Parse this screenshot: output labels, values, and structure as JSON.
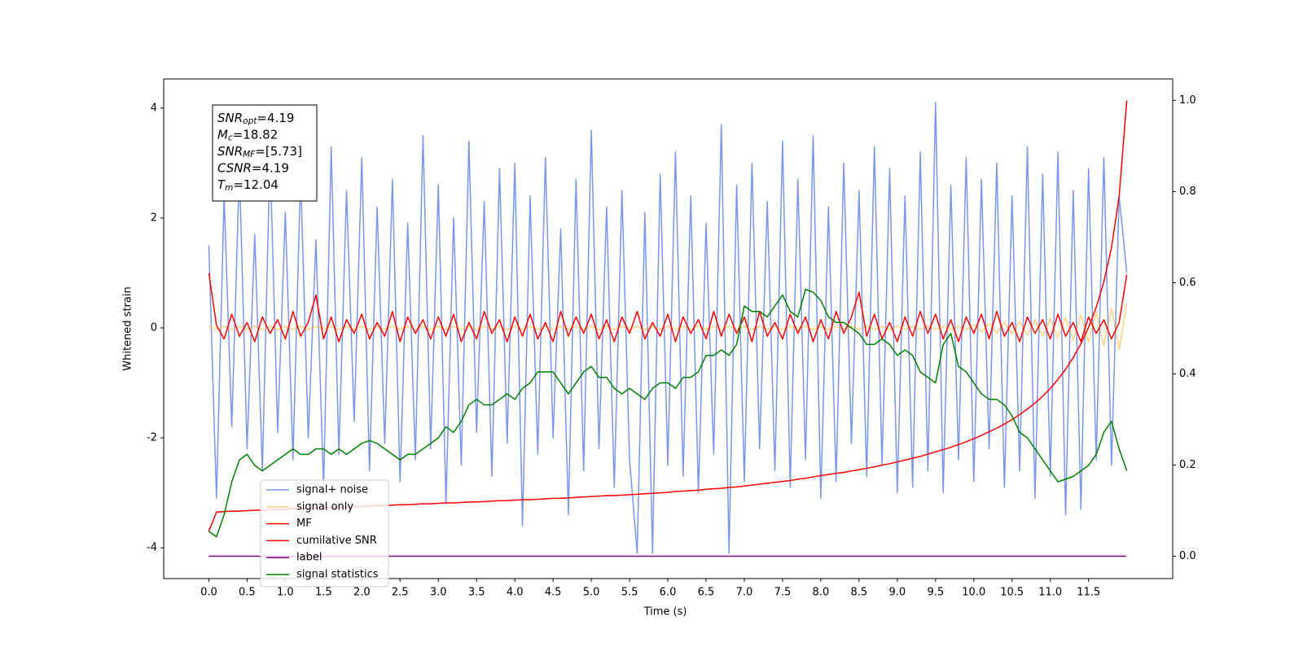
{
  "chart_data": {
    "type": "line",
    "xlabel": "Time (s)",
    "ylabel": "Whitened strain",
    "xlim": [
      -0.59,
      12.6
    ],
    "ylim": [
      -4.56,
      4.53
    ],
    "y2lim": [
      -0.049,
      1.047
    ],
    "xticks": [
      {
        "value": 0,
        "label": "0.0"
      },
      0.5,
      {
        "value": 1,
        "label": "1.0"
      },
      1.5,
      {
        "value": 2,
        "label": "2.0"
      },
      2.5,
      {
        "value": 3,
        "label": "3.0"
      },
      3.5,
      {
        "value": 4,
        "label": "4.0"
      },
      4.5,
      {
        "value": 5,
        "label": "5.0"
      },
      5.5,
      {
        "value": 6,
        "label": "6.0"
      },
      6.5,
      {
        "value": 7,
        "label": "7.0"
      },
      7.5,
      {
        "value": 8,
        "label": "8.0"
      },
      8.5,
      {
        "value": 9,
        "label": "9.0"
      },
      9.5,
      {
        "value": 10,
        "label": "10.0"
      },
      10.5,
      {
        "value": 11,
        "label": "11.0"
      },
      11.5
    ],
    "yticks": [
      -4,
      -2,
      0,
      2,
      4
    ],
    "y2ticks": [
      {
        "value": 0,
        "label": "0.0"
      },
      0.2,
      0.4,
      0.6,
      0.8,
      {
        "value": 1,
        "label": "1.0"
      }
    ],
    "legend": "lower left",
    "annotations": [
      {
        "base": "SNR",
        "sub": "opt",
        "text": "=4.19"
      },
      {
        "base": "M",
        "sub": "c",
        "text": "=18.82"
      },
      {
        "base": "SNR",
        "sub": "MF",
        "text": "=[5.73]"
      },
      {
        "base": "CSNR",
        "text": "=4.19"
      },
      {
        "base": "T",
        "sub": "m",
        "text": "=12.04"
      }
    ],
    "x": [
      0,
      0.1,
      0.2,
      0.3,
      0.4,
      0.5,
      0.6,
      0.7,
      0.8,
      0.9,
      1,
      1.1,
      1.2,
      1.3,
      1.4,
      1.5,
      1.6,
      1.7,
      1.8,
      1.9,
      2,
      2.1,
      2.2,
      2.3,
      2.4,
      2.5,
      2.6,
      2.7,
      2.8,
      2.9,
      3,
      3.1,
      3.2,
      3.3,
      3.4,
      3.5,
      3.6,
      3.7,
      3.8,
      3.9,
      4,
      4.1,
      4.2,
      4.3,
      4.4,
      4.5,
      4.6,
      4.7,
      4.8,
      4.9,
      5,
      5.1,
      5.2,
      5.3,
      5.4,
      5.5,
      5.6,
      5.7,
      5.8,
      5.9,
      6,
      6.1,
      6.2,
      6.3,
      6.4,
      6.5,
      6.6,
      6.7,
      6.8,
      6.9,
      7,
      7.1,
      7.2,
      7.3,
      7.4,
      7.5,
      7.6,
      7.7,
      7.8,
      7.9,
      8,
      8.1,
      8.2,
      8.3,
      8.4,
      8.5,
      8.6,
      8.7,
      8.8,
      8.9,
      9,
      9.1,
      9.2,
      9.3,
      9.4,
      9.5,
      9.6,
      9.7,
      9.8,
      9.9,
      10,
      10.1,
      10.2,
      10.3,
      10.4,
      10.5,
      10.6,
      10.7,
      10.8,
      10.9,
      11,
      11.1,
      11.2,
      11.3,
      11.4,
      11.5,
      11.6,
      11.7,
      11.8,
      11.9,
      12
    ],
    "series": [
      {
        "name": "signal+ noise",
        "color": "#4169e1",
        "alpha": 0.7,
        "values": [
          1.5,
          -3.1,
          2.4,
          -1.8,
          2.9,
          -2.2,
          1.7,
          -2.6,
          3.2,
          -1.9,
          2.1,
          -2.4,
          2.8,
          -2.0,
          1.6,
          -2.9,
          3.3,
          -2.3,
          2.5,
          -1.7,
          3.1,
          -2.6,
          2.2,
          -2.1,
          2.7,
          -2.8,
          1.9,
          -2.4,
          3.5,
          -2.2,
          2.6,
          -3.2,
          2.0,
          -2.5,
          3.4,
          -1.9,
          2.3,
          -2.7,
          2.9,
          -2.1,
          3.0,
          -3.6,
          2.4,
          -2.3,
          3.1,
          -2.0,
          1.8,
          -3.4,
          2.7,
          -2.6,
          3.6,
          -2.2,
          2.2,
          -2.9,
          2.5,
          -2.4,
          -4.1,
          2.1,
          -4.1,
          2.8,
          -2.5,
          3.2,
          -2.7,
          2.4,
          -3.0,
          1.9,
          -2.3,
          3.7,
          -4.1,
          2.6,
          -2.8,
          3.0,
          -2.2,
          2.3,
          -2.6,
          3.4,
          -2.9,
          2.7,
          -2.4,
          3.5,
          -3.1,
          2.2,
          -2.8,
          3.0,
          -2.1,
          2.5,
          -2.7,
          3.3,
          -2.5,
          2.9,
          -3.0,
          2.4,
          -2.9,
          3.2,
          -2.6,
          4.1,
          -3.0,
          2.6,
          -2.4,
          3.1,
          -2.8,
          2.7,
          -2.2,
          3.0,
          -2.9,
          2.4,
          -2.6,
          3.3,
          -3.1,
          2.8,
          -2.7,
          3.2,
          -3.4,
          2.5,
          -3.3,
          2.9,
          -2.4,
          3.1,
          -2.5,
          2.4,
          1.0
        ]
      },
      {
        "name": "signal only",
        "color": "#ffa500",
        "alpha": 0.5,
        "values": [
          0.03,
          -0.03,
          0.03,
          -0.03,
          0.03,
          -0.03,
          0.03,
          -0.03,
          0.03,
          -0.03,
          0.03,
          -0.03,
          0.03,
          -0.03,
          0.03,
          -0.03,
          0.03,
          -0.03,
          0.03,
          -0.03,
          0.03,
          -0.03,
          0.03,
          -0.03,
          0.03,
          -0.03,
          0.03,
          -0.03,
          0.03,
          -0.03,
          0.03,
          -0.03,
          0.03,
          -0.03,
          0.03,
          -0.03,
          0.03,
          -0.03,
          0.03,
          -0.03,
          0.03,
          -0.03,
          0.03,
          -0.03,
          0.03,
          -0.03,
          0.03,
          -0.03,
          0.03,
          -0.03,
          0.03,
          -0.03,
          0.03,
          -0.03,
          0.03,
          -0.03,
          0.03,
          -0.03,
          0.03,
          -0.03,
          0.03,
          -0.03,
          0.03,
          -0.03,
          0.03,
          -0.03,
          0.03,
          -0.03,
          0.03,
          -0.03,
          0.03,
          -0.03,
          0.03,
          -0.03,
          0.03,
          -0.03,
          0.03,
          -0.03,
          0.03,
          -0.03,
          0.03,
          -0.03,
          0.03,
          -0.03,
          0.03,
          -0.03,
          0.03,
          -0.03,
          0.03,
          -0.03,
          0.03,
          -0.03,
          0.03,
          -0.03,
          0.03,
          -0.03,
          0.03,
          -0.03,
          0.03,
          -0.03,
          0.06,
          -0.07,
          0.08,
          -0.09,
          0.1,
          -0.11,
          0.12,
          -0.13,
          0.14,
          -0.15,
          0.17,
          -0.18,
          0.2,
          -0.22,
          0.24,
          -0.26,
          0.29,
          -0.32,
          0.36,
          -0.4,
          0.45
        ]
      },
      {
        "name": "MF",
        "color": "#ff0000",
        "values": [
          1.0,
          0.05,
          -0.2,
          0.25,
          -0.15,
          0.1,
          -0.25,
          0.2,
          -0.1,
          0.15,
          -0.2,
          0.3,
          -0.15,
          0.1,
          0.6,
          -0.2,
          0.2,
          -0.25,
          0.15,
          -0.1,
          0.25,
          -0.2,
          0.1,
          -0.15,
          0.3,
          -0.25,
          0.2,
          -0.1,
          0.15,
          -0.2,
          0.2,
          -0.15,
          0.25,
          -0.25,
          0.1,
          -0.2,
          0.3,
          -0.1,
          0.15,
          -0.25,
          0.2,
          -0.15,
          0.25,
          -0.2,
          0.1,
          -0.25,
          0.3,
          -0.15,
          0.2,
          -0.1,
          0.25,
          -0.2,
          0.15,
          -0.25,
          0.2,
          -0.1,
          0.3,
          -0.2,
          0.1,
          -0.15,
          0.25,
          -0.25,
          0.2,
          -0.1,
          0.15,
          -0.2,
          0.3,
          -0.15,
          0.25,
          -0.1,
          0.2,
          -0.25,
          0.3,
          -0.15,
          0.1,
          -0.2,
          0.25,
          -0.1,
          0.2,
          -0.25,
          0.15,
          -0.2,
          0.3,
          -0.1,
          0.2,
          0.65,
          -0.15,
          0.25,
          -0.2,
          0.1,
          -0.25,
          0.2,
          -0.15,
          0.3,
          -0.1,
          0.25,
          -0.2,
          0.15,
          -0.25,
          0.2,
          -0.1,
          0.25,
          -0.2,
          0.3,
          -0.15,
          0.1,
          -0.25,
          0.2,
          -0.1,
          0.15,
          -0.2,
          0.25,
          -0.15,
          0.1,
          -0.25,
          0.2,
          -0.1,
          0.15,
          -0.2,
          0.1,
          0.97
        ]
      },
      {
        "name": "cumilative SNR",
        "color": "#ff0000",
        "axis": "y2",
        "values": [
          0.055,
          0.097,
          0.098,
          0.099,
          0.099,
          0.1,
          0.101,
          0.101,
          0.102,
          0.103,
          0.103,
          0.104,
          0.104,
          0.105,
          0.106,
          0.106,
          0.107,
          0.107,
          0.108,
          0.109,
          0.109,
          0.11,
          0.111,
          0.111,
          0.112,
          0.113,
          0.113,
          0.114,
          0.115,
          0.115,
          0.116,
          0.117,
          0.117,
          0.118,
          0.119,
          0.119,
          0.12,
          0.121,
          0.122,
          0.122,
          0.123,
          0.124,
          0.124,
          0.125,
          0.126,
          0.127,
          0.127,
          0.128,
          0.129,
          0.13,
          0.131,
          0.132,
          0.133,
          0.133,
          0.134,
          0.135,
          0.136,
          0.137,
          0.138,
          0.139,
          0.14,
          0.142,
          0.143,
          0.144,
          0.145,
          0.147,
          0.148,
          0.149,
          0.151,
          0.152,
          0.154,
          0.156,
          0.158,
          0.16,
          0.162,
          0.164,
          0.166,
          0.169,
          0.171,
          0.174,
          0.177,
          0.179,
          0.182,
          0.184,
          0.187,
          0.19,
          0.193,
          0.196,
          0.2,
          0.203,
          0.207,
          0.211,
          0.215,
          0.219,
          0.224,
          0.229,
          0.234,
          0.239,
          0.245,
          0.251,
          0.258,
          0.265,
          0.273,
          0.281,
          0.29,
          0.3,
          0.311,
          0.323,
          0.336,
          0.351,
          0.368,
          0.388,
          0.41,
          0.436,
          0.466,
          0.502,
          0.546,
          0.602,
          0.677,
          0.79,
          1.0
        ]
      },
      {
        "name": "label",
        "color": "#800080",
        "axis": "y2",
        "x": [
          0,
          11.99
        ],
        "values": [
          0,
          0
        ]
      },
      {
        "name": "signal statistics",
        "color": "#008000",
        "values": [
          -3.7,
          -3.8,
          -3.4,
          -2.8,
          -2.4,
          -2.3,
          -2.5,
          -2.6,
          -2.5,
          -2.4,
          -2.3,
          -2.2,
          -2.3,
          -2.3,
          -2.2,
          -2.2,
          -2.3,
          -2.2,
          -2.3,
          -2.2,
          -2.1,
          -2.05,
          -2.1,
          -2.2,
          -2.3,
          -2.4,
          -2.3,
          -2.3,
          -2.2,
          -2.1,
          -2.0,
          -1.8,
          -1.9,
          -1.7,
          -1.4,
          -1.3,
          -1.4,
          -1.4,
          -1.3,
          -1.2,
          -1.3,
          -1.1,
          -1.0,
          -0.8,
          -0.8,
          -0.8,
          -1.0,
          -1.2,
          -1.0,
          -0.8,
          -0.7,
          -0.9,
          -0.9,
          -1.1,
          -1.2,
          -1.1,
          -1.2,
          -1.3,
          -1.1,
          -1.0,
          -1.0,
          -1.1,
          -0.9,
          -0.9,
          -0.8,
          -0.5,
          -0.5,
          -0.4,
          -0.5,
          -0.3,
          0.4,
          0.3,
          0.3,
          0.2,
          0.4,
          0.6,
          0.3,
          0.2,
          0.7,
          0.65,
          0.5,
          0.2,
          0.1,
          0.1,
          0.0,
          -0.1,
          -0.3,
          -0.3,
          -0.2,
          -0.3,
          -0.5,
          -0.4,
          -0.5,
          -0.8,
          -0.9,
          -1.0,
          -0.3,
          -0.1,
          -0.7,
          -0.8,
          -1.0,
          -1.2,
          -1.3,
          -1.3,
          -1.4,
          -1.6,
          -1.9,
          -2.0,
          -2.2,
          -2.4,
          -2.6,
          -2.8,
          -2.75,
          -2.7,
          -2.6,
          -2.5,
          -2.3,
          -1.9,
          -1.7,
          -2.2,
          -2.6
        ]
      }
    ]
  }
}
